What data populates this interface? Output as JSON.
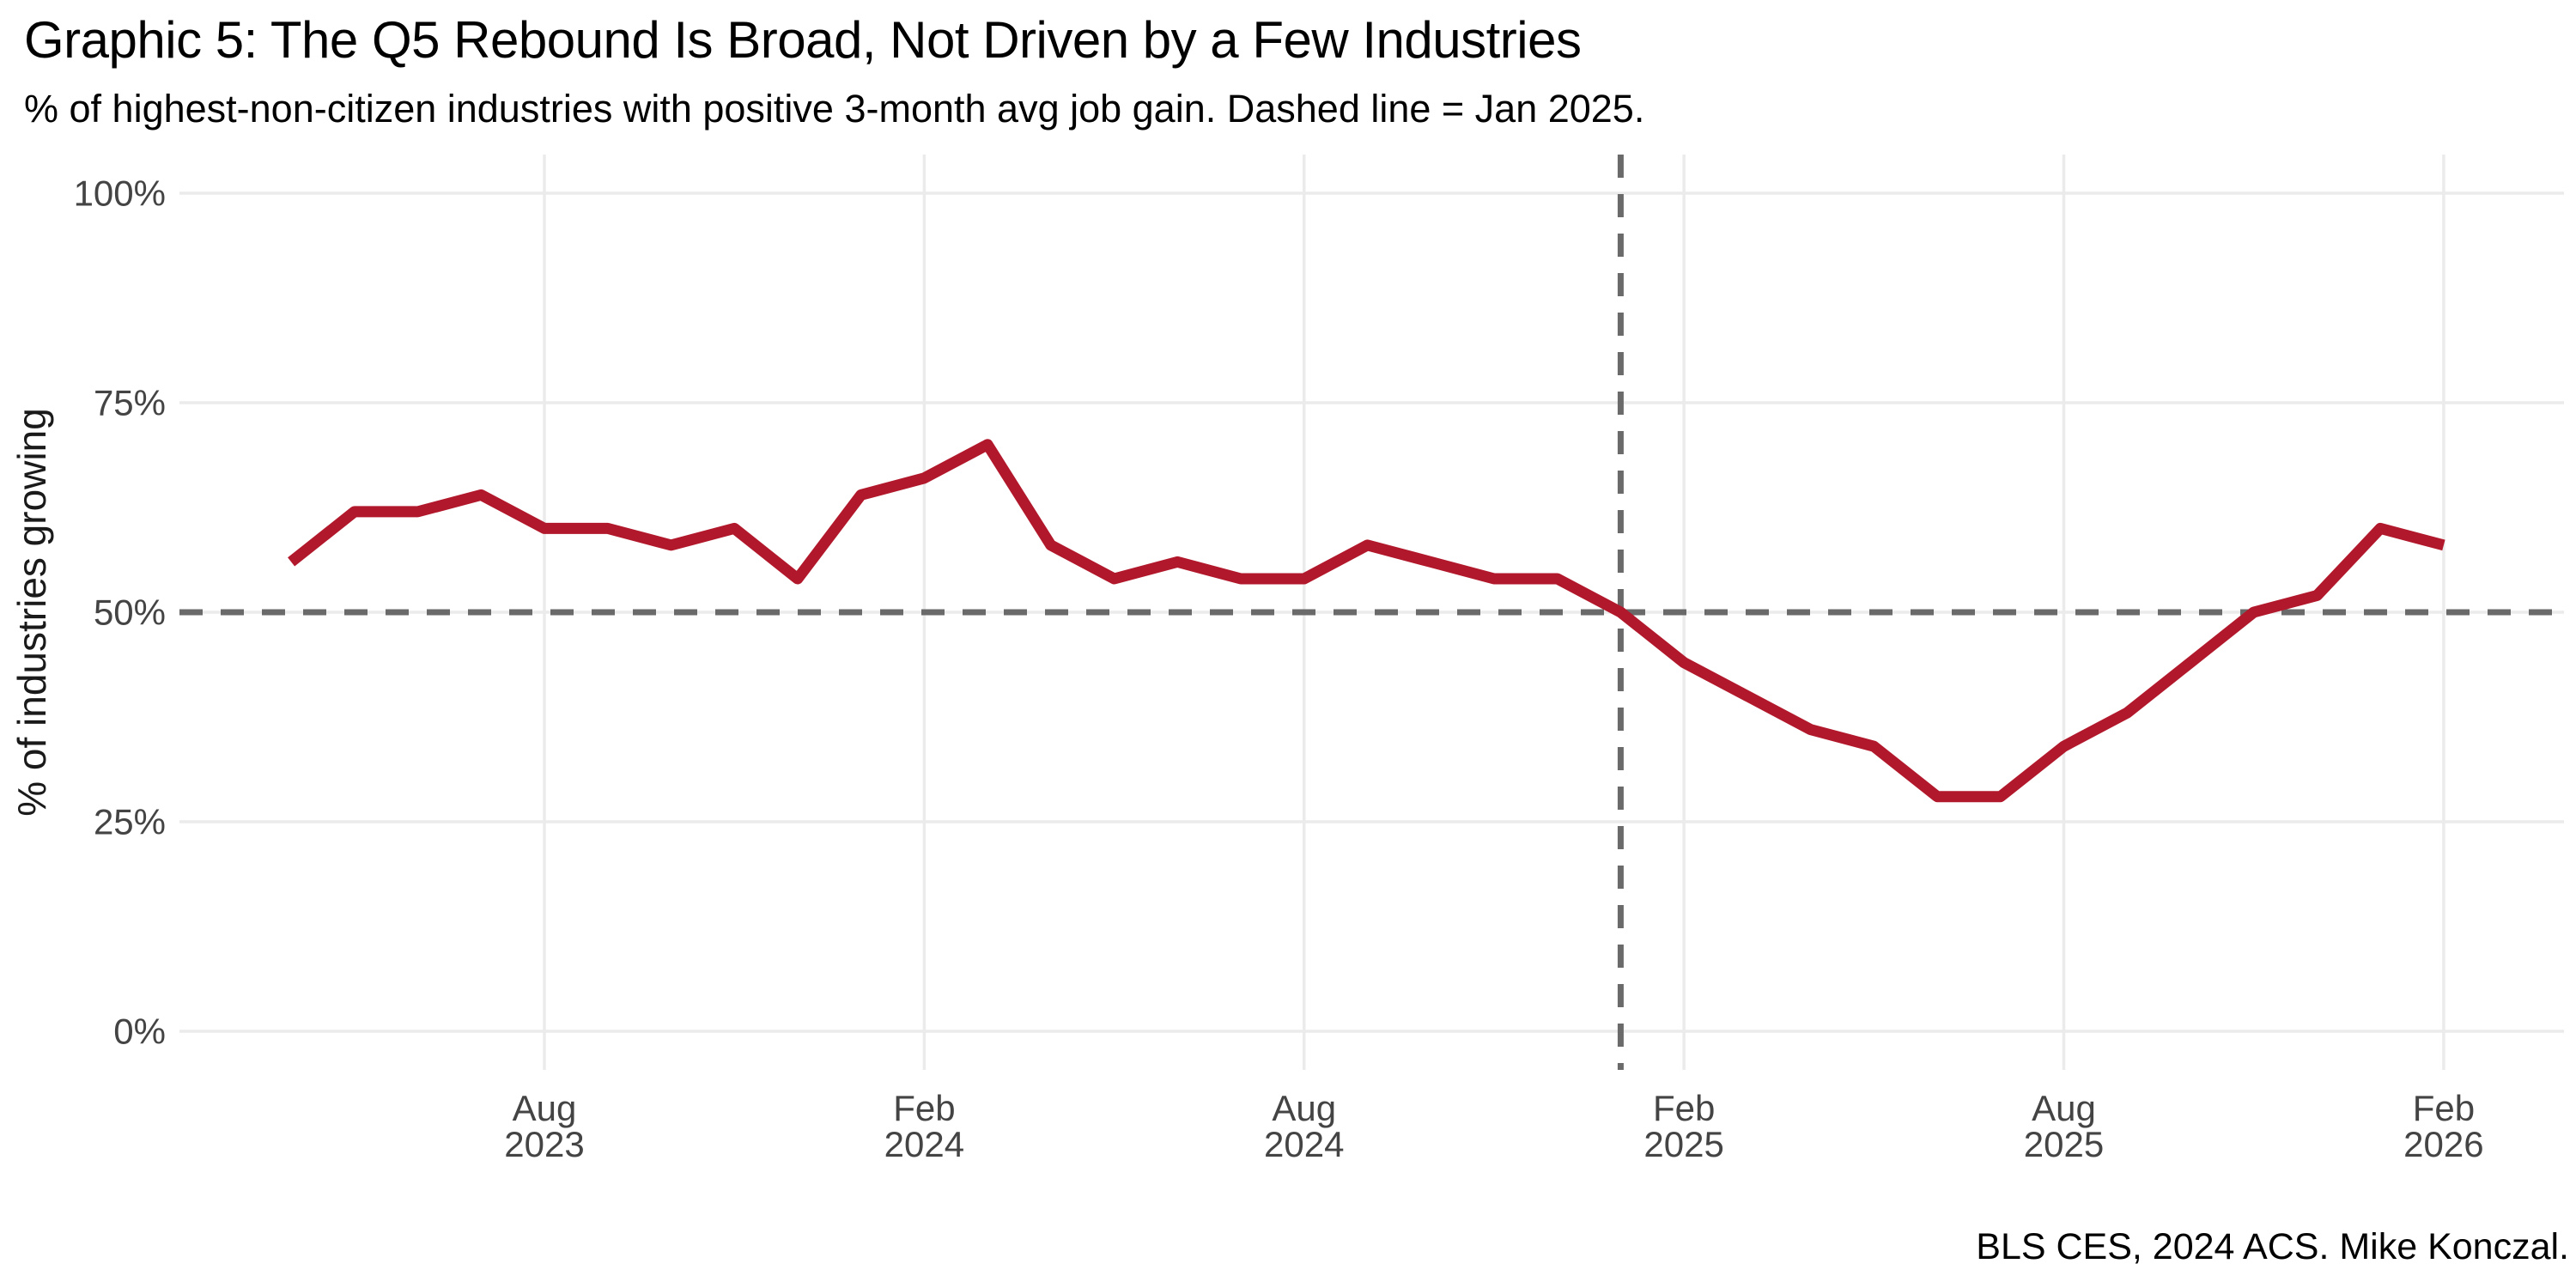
{
  "header": {
    "title": "Graphic 5: The Q5 Rebound Is Broad, Not Driven by a Few Industries",
    "subtitle": "% of highest-non-citizen industries with positive 3-month avg job gain. Dashed line = Jan 2025."
  },
  "caption": "BLS CES, 2024 ACS. Mike Konczal.",
  "colors": {
    "line": "#b2182b",
    "grid": "#ebebeb",
    "dashed_reference": "#6a6a6a",
    "tick_text": "#444444",
    "text": "#000000",
    "background": "#ffffff"
  },
  "chart_data": {
    "type": "line",
    "title": "Graphic 5: The Q5 Rebound Is Broad, Not Driven by a Few Industries",
    "subtitle": "% of highest-non-citizen industries with positive 3-month avg job gain. Dashed line = Jan 2025.",
    "xlabel": "",
    "ylabel": "% of industries growing",
    "ylim": [
      0,
      100
    ],
    "grid": true,
    "legend": null,
    "y_ticks": [
      {
        "value": 0,
        "label": "0%"
      },
      {
        "value": 25,
        "label": "25%"
      },
      {
        "value": 50,
        "label": "50%"
      },
      {
        "value": 75,
        "label": "75%"
      },
      {
        "value": 100,
        "label": "100%"
      }
    ],
    "x": [
      "Apr 2023",
      "May 2023",
      "Jun 2023",
      "Jul 2023",
      "Aug 2023",
      "Sep 2023",
      "Oct 2023",
      "Nov 2023",
      "Dec 2023",
      "Jan 2024",
      "Feb 2024",
      "Mar 2024",
      "Apr 2024",
      "May 2024",
      "Jun 2024",
      "Jul 2024",
      "Aug 2024",
      "Sep 2024",
      "Oct 2024",
      "Nov 2024",
      "Dec 2024",
      "Jan 2025",
      "Feb 2025",
      "Mar 2025",
      "Apr 2025",
      "May 2025",
      "Jun 2025",
      "Jul 2025",
      "Aug 2025",
      "Sep 2025",
      "Oct 2025",
      "Nov 2025",
      "Dec 2025",
      "Jan 2026",
      "Feb 2026"
    ],
    "series": [
      {
        "name": "% of industries with positive 3-month avg job gain",
        "values": [
          56,
          62,
          62,
          64,
          60,
          60,
          58,
          60,
          54,
          64,
          66,
          70,
          58,
          54,
          56,
          54,
          54,
          58,
          56,
          54,
          54,
          50,
          44,
          40,
          36,
          34,
          28,
          28,
          34,
          38,
          44,
          50,
          52,
          60,
          58
        ]
      }
    ],
    "x_ticks": [
      {
        "index": 4,
        "month": "Aug",
        "year": "2023"
      },
      {
        "index": 10,
        "month": "Feb",
        "year": "2024"
      },
      {
        "index": 16,
        "month": "Aug",
        "year": "2024"
      },
      {
        "index": 22,
        "month": "Feb",
        "year": "2025"
      },
      {
        "index": 28,
        "month": "Aug",
        "year": "2025"
      },
      {
        "index": 34,
        "month": "Feb",
        "year": "2026"
      }
    ],
    "reference_lines": {
      "horizontal": {
        "value": 50,
        "style": "dashed"
      },
      "vertical": {
        "x_label": "Jan 2025",
        "index": 21,
        "style": "dashed"
      }
    }
  }
}
